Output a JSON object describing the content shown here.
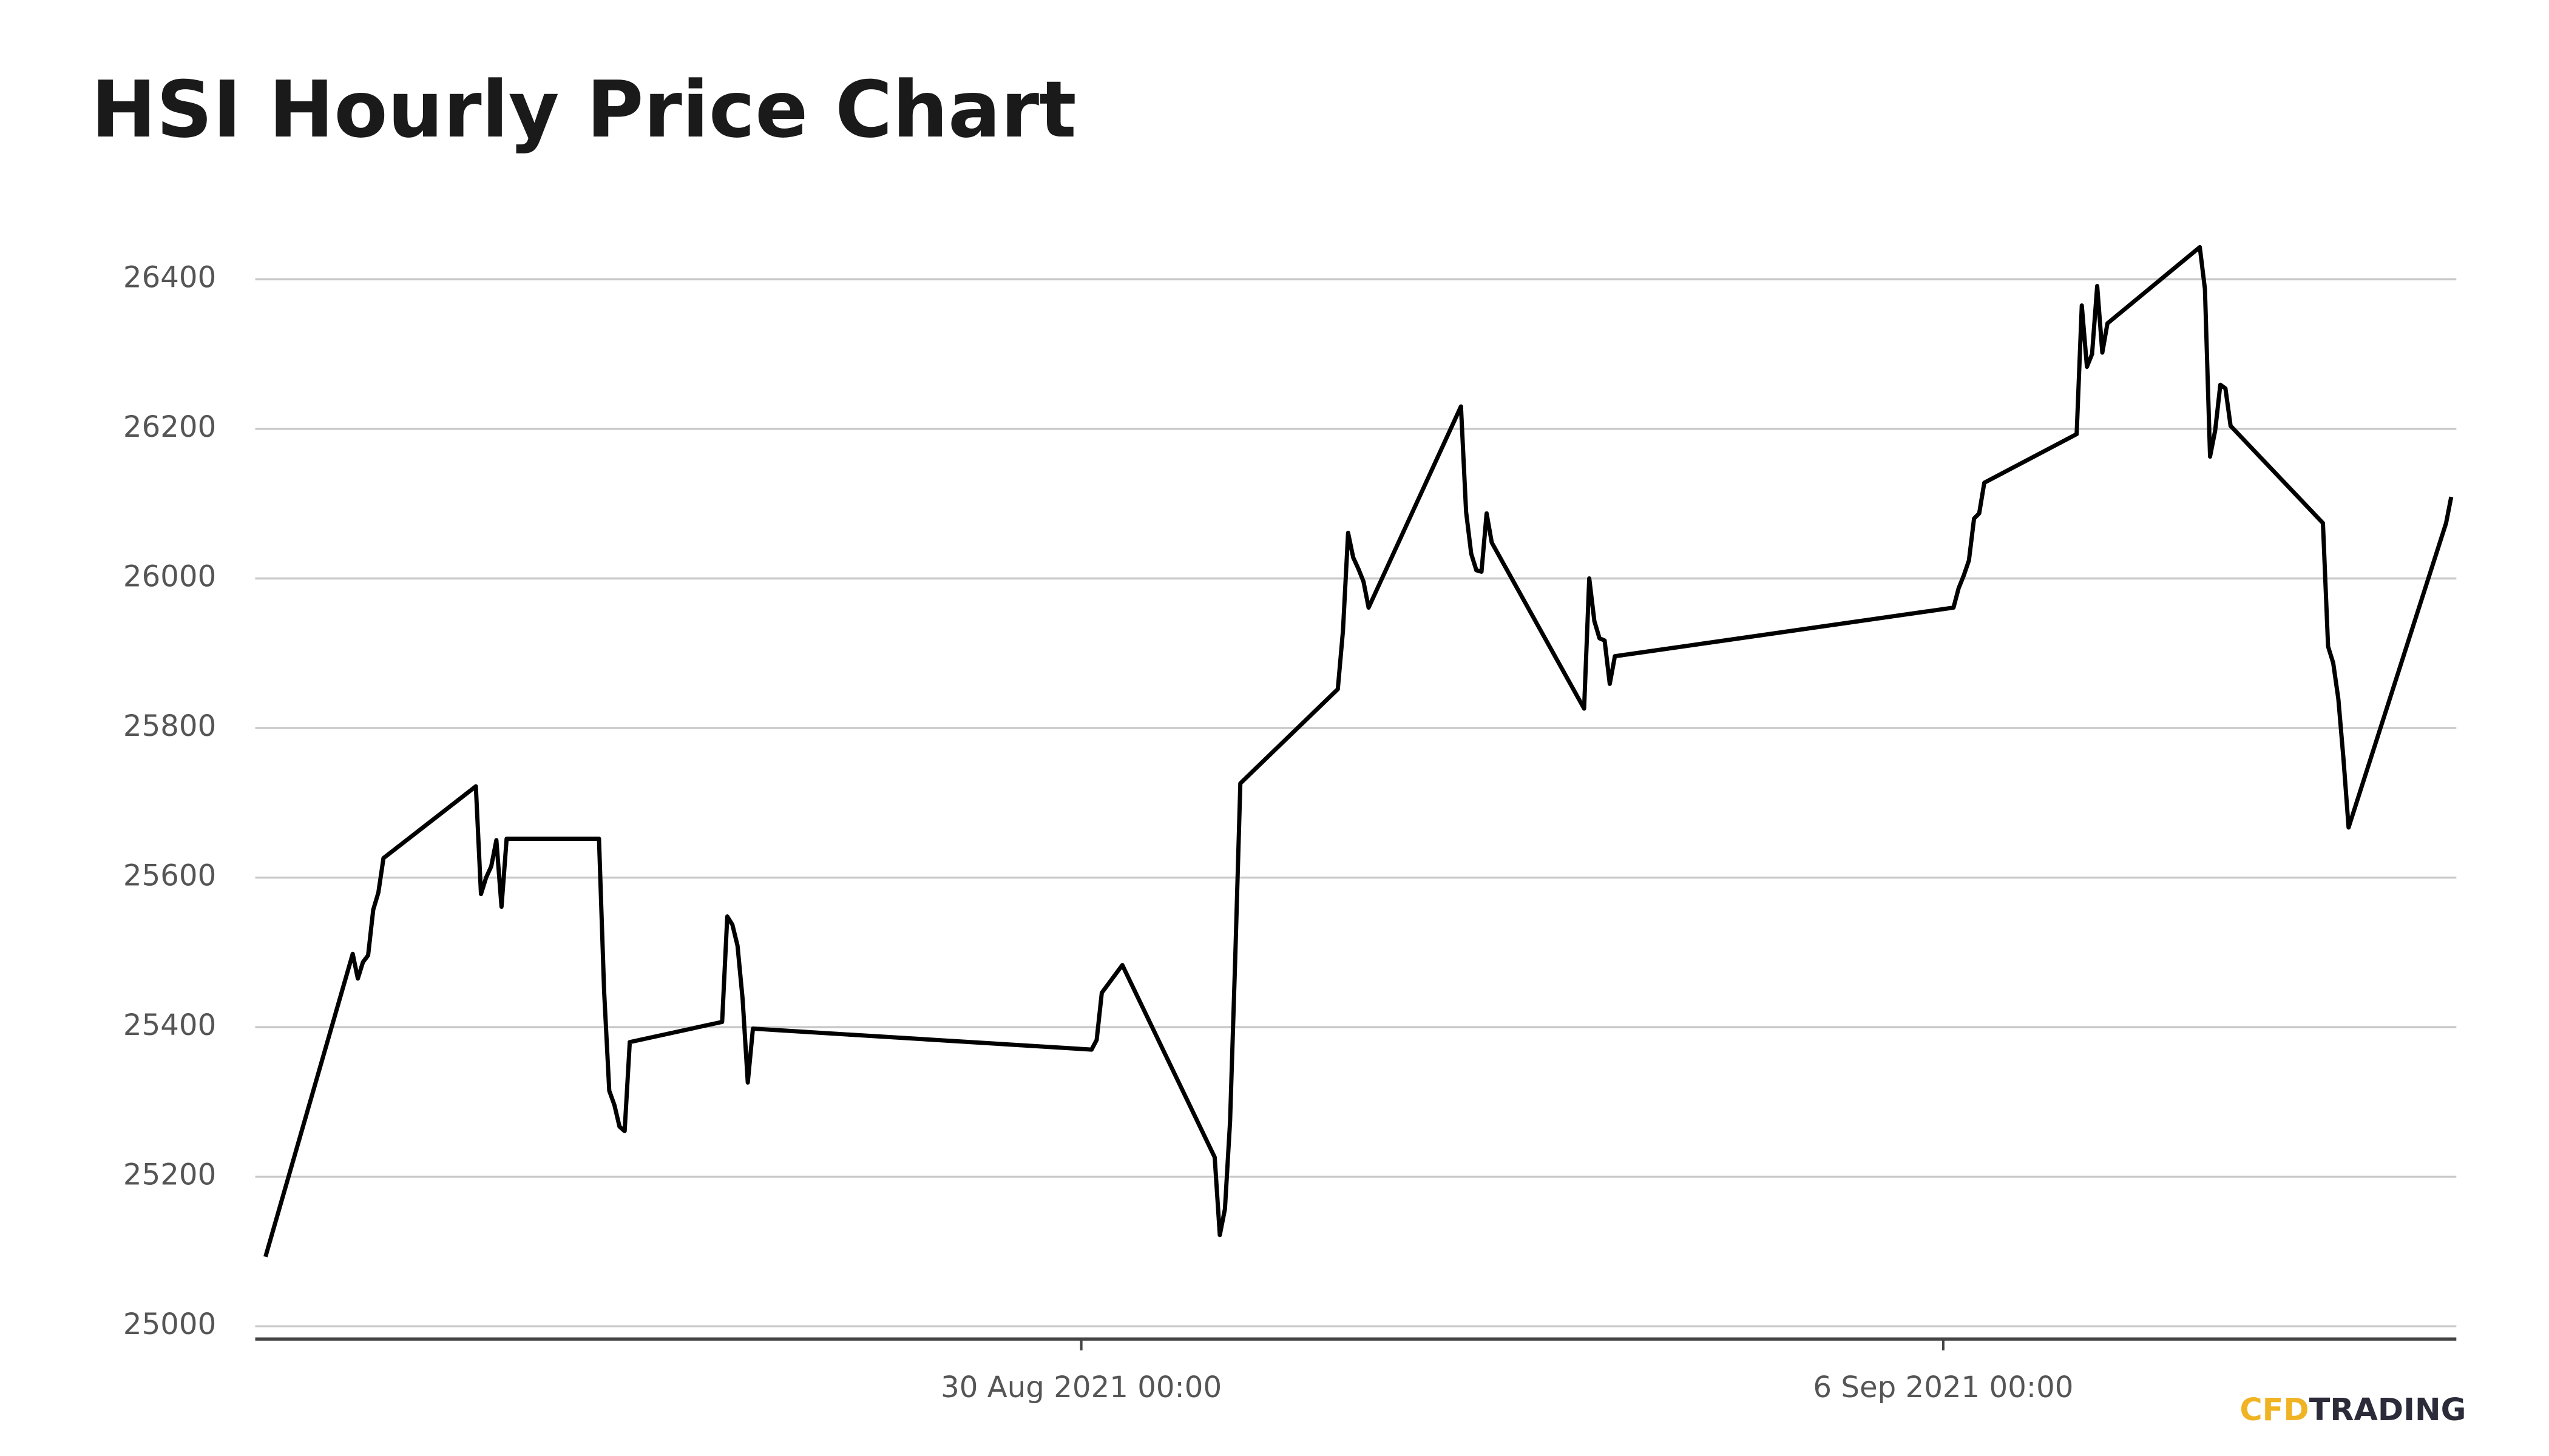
{
  "chart_data": {
    "type": "line",
    "title": "HSI Hourly Price Chart",
    "x": [
      "2021-08-23T09:00",
      "2021-08-24T02:00",
      "2021-08-24T03:00",
      "2021-08-24T04:00",
      "2021-08-24T05:00",
      "2021-08-24T06:00",
      "2021-08-24T07:00",
      "2021-08-24T08:00",
      "2021-08-25T02:00",
      "2021-08-25T03:00",
      "2021-08-25T04:00",
      "2021-08-25T05:00",
      "2021-08-25T06:00",
      "2021-08-25T07:00",
      "2021-08-25T08:00",
      "2021-08-26T02:00",
      "2021-08-26T03:00",
      "2021-08-26T04:00",
      "2021-08-26T05:00",
      "2021-08-26T06:00",
      "2021-08-26T07:00",
      "2021-08-26T08:00",
      "2021-08-27T02:00",
      "2021-08-27T03:00",
      "2021-08-27T04:00",
      "2021-08-27T05:00",
      "2021-08-27T06:00",
      "2021-08-27T07:00",
      "2021-08-27T08:00",
      "2021-08-30T02:00",
      "2021-08-30T03:00",
      "2021-08-30T04:00",
      "2021-08-30T08:00",
      "2021-08-31T02:00",
      "2021-08-31T03:00",
      "2021-08-31T04:00",
      "2021-08-31T05:00",
      "2021-08-31T06:00",
      "2021-08-31T07:00",
      "2021-09-01T02:00",
      "2021-09-01T03:00",
      "2021-09-01T04:00",
      "2021-09-01T05:00",
      "2021-09-01T06:00",
      "2021-09-01T07:00",
      "2021-09-01T08:00",
      "2021-09-02T02:00",
      "2021-09-02T03:00",
      "2021-09-02T04:00",
      "2021-09-02T05:00",
      "2021-09-02T06:00",
      "2021-09-02T07:00",
      "2021-09-02T08:00",
      "2021-09-03T02:00",
      "2021-09-03T03:00",
      "2021-09-03T04:00",
      "2021-09-03T05:00",
      "2021-09-03T06:00",
      "2021-09-03T07:00",
      "2021-09-03T08:00",
      "2021-09-06T02:00",
      "2021-09-06T03:00",
      "2021-09-06T04:00",
      "2021-09-06T05:00",
      "2021-09-06T06:00",
      "2021-09-06T07:00",
      "2021-09-06T08:00",
      "2021-09-07T02:00",
      "2021-09-07T03:00",
      "2021-09-07T04:00",
      "2021-09-07T05:00",
      "2021-09-07T06:00",
      "2021-09-07T07:00",
      "2021-09-07T08:00",
      "2021-09-08T02:00",
      "2021-09-08T03:00",
      "2021-09-08T04:00",
      "2021-09-08T05:00",
      "2021-09-08T06:00",
      "2021-09-08T07:00",
      "2021-09-08T08:00",
      "2021-09-09T02:00",
      "2021-09-09T03:00",
      "2021-09-09T04:00",
      "2021-09-09T05:00",
      "2021-09-09T06:00",
      "2021-09-09T07:00",
      "2021-09-10T02:00",
      "2021-09-10T03:00"
    ],
    "series": [
      {
        "name": "HSI",
        "color": "#000000",
        "values": [
          25093,
          25498,
          25465,
          25487,
          25496,
          25557,
          25580,
          25626,
          25722,
          25578,
          25600,
          25615,
          25650,
          25561,
          25652,
          25652,
          25448,
          25315,
          25296,
          25267,
          25261,
          25380,
          25407,
          25548,
          25537,
          25509,
          25437,
          25326,
          25398,
          25370,
          25383,
          25446,
          25483,
          25226,
          25122,
          25157,
          25274,
          25491,
          25726,
          25852,
          25930,
          26061,
          26028,
          26013,
          25996,
          25961,
          26230,
          26089,
          26033,
          26011,
          26009,
          26087,
          26048,
          25826,
          26000,
          25943,
          25920,
          25917,
          25859,
          25896,
          25961,
          25987,
          26004,
          26024,
          26080,
          26087,
          26128,
          26193,
          26365,
          26283,
          26300,
          26391,
          26302,
          26341,
          26443,
          26387,
          26163,
          26198,
          26259,
          26254,
          26204,
          26074,
          25909,
          25887,
          25839,
          25759,
          25667,
          26074,
          26109
        ]
      }
    ],
    "xlim": [
      "2021-08-23T07:00",
      "2021-09-10T04:00"
    ],
    "xticks": [
      {
        "value": "2021-08-30T00:00",
        "label": "30 Aug 2021 00:00"
      },
      {
        "value": "2021-09-06T00:00",
        "label": "6 Sep 2021 00:00"
      }
    ],
    "ylim": [
      24983,
      26491
    ],
    "yticks": [
      25000,
      25200,
      25400,
      25600,
      25800,
      26000,
      26200,
      26400
    ],
    "grid": true,
    "logo": {
      "first": "CFD",
      "second": "TRADING"
    }
  }
}
